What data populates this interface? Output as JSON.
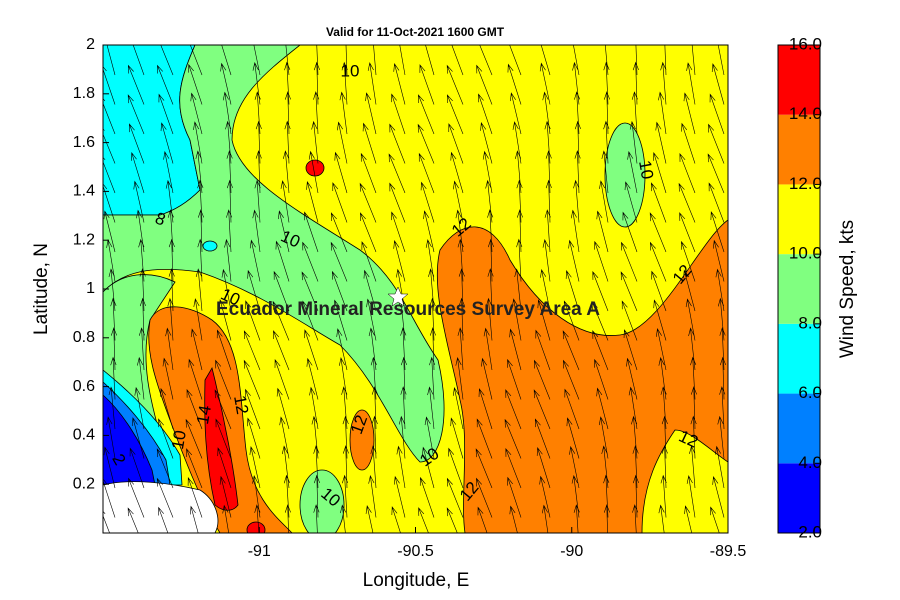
{
  "chart_data": {
    "type": "contour",
    "title": "Valid for 11-Oct-2021 1600 GMT",
    "xlabel": "Longitude, E",
    "ylabel": "Latitude, N",
    "annotation": "Ecuador Mineral Resources Survey Area A",
    "xlim": [
      -91.5,
      -89.5
    ],
    "xticks": [
      -91,
      -90.5,
      -90,
      -89.5
    ],
    "ylim": [
      0,
      2
    ],
    "yticks": [
      0.2,
      0.4,
      0.6,
      0.8,
      1,
      1.2,
      1.4,
      1.6,
      1.8,
      2
    ],
    "colorbar": {
      "label": "Wind Speed, kts",
      "lim": [
        2,
        16
      ],
      "ticks": [
        {
          "value": 2,
          "label": "2.0"
        },
        {
          "value": 4,
          "label": "4.0"
        },
        {
          "value": 6,
          "label": "6.0"
        },
        {
          "value": 8,
          "label": "8.0"
        },
        {
          "value": 10,
          "label": "10.0"
        },
        {
          "value": 12,
          "label": "12.0"
        },
        {
          "value": 14,
          "label": "14.0"
        },
        {
          "value": 16,
          "label": "16.0"
        }
      ],
      "colors": [
        "#0000ff",
        "#0080ff",
        "#00ffff",
        "#80ff80",
        "#ffff00",
        "#ff8000",
        "#ff0000"
      ]
    },
    "contour_labels": [
      10,
      8,
      10,
      10,
      12,
      10,
      12,
      12,
      14,
      12,
      10,
      12,
      10,
      12,
      10,
      2
    ]
  }
}
